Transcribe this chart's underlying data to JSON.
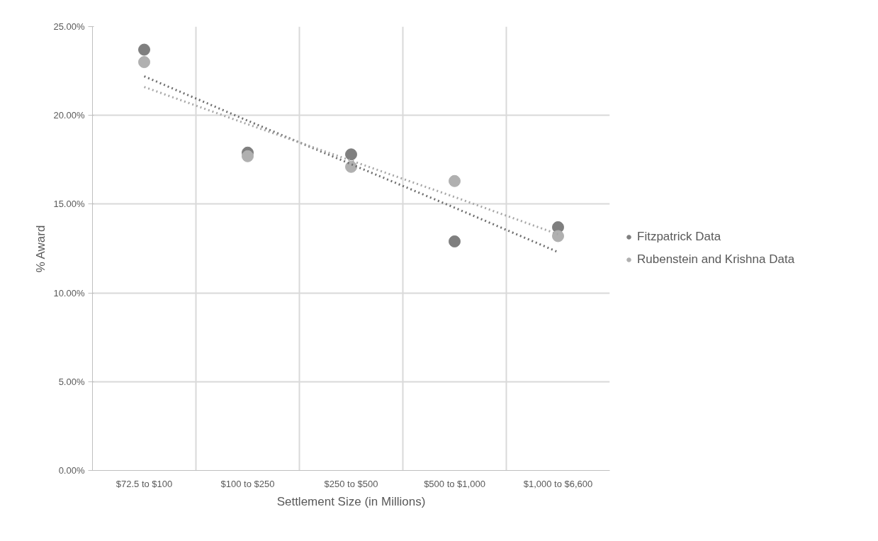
{
  "chart_data": {
    "type": "scatter",
    "xlabel": "Settlement Size (in Millions)",
    "ylabel": "% Award",
    "categories": [
      "$72.5 to $100",
      "$100 to $250",
      "$250 to $500",
      "$500 to $1,000",
      "$1,000 to $6,600"
    ],
    "series": [
      {
        "name": "Fitzpatrick Data",
        "color": "#7f7f7f",
        "values": [
          23.7,
          17.9,
          17.8,
          12.9,
          13.7
        ]
      },
      {
        "name": "Rubenstein and Krishna Data",
        "color": "#b0b0b0",
        "values": [
          23.0,
          17.7,
          17.1,
          16.3,
          13.2
        ]
      },
      {
        "type": "line",
        "marker": "none",
        "line_style": "dotted",
        "color": "#6f6f6f",
        "values": [
          22.2,
          19.7,
          17.25,
          14.8,
          12.3
        ]
      },
      {
        "type": "line",
        "marker": "none",
        "line_style": "dotted",
        "color": "#a8a8a8",
        "values": [
          21.6,
          19.5,
          17.45,
          15.4,
          13.3
        ]
      }
    ],
    "ylim": [
      0,
      25
    ],
    "yticks": [
      {
        "value": 0,
        "label": "0.00%"
      },
      {
        "value": 5,
        "label": "5.00%"
      },
      {
        "value": 10,
        "label": "10.00%"
      },
      {
        "value": 15,
        "label": "15.00%"
      },
      {
        "value": 20,
        "label": "20.00%"
      },
      {
        "value": 25,
        "label": "25.00%"
      }
    ],
    "grid": true,
    "legend": "right",
    "marker": "circle"
  }
}
